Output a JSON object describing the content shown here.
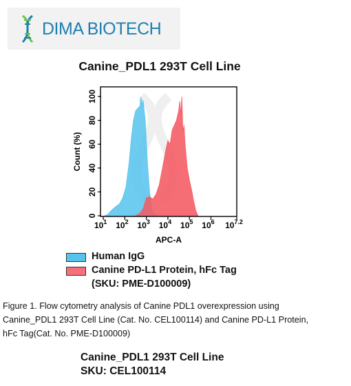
{
  "logo": {
    "text": "DIMA BIOTECH"
  },
  "chart_data": {
    "type": "area",
    "title": "Canine_PDL1 293T Cell Line",
    "xlabel": "APC-A",
    "ylabel": "Count (%)",
    "x_scale": "log10",
    "xlim": [
      0.9,
      7.2
    ],
    "ylim": [
      0,
      100
    ],
    "x_ticks": [
      {
        "pos": 1,
        "base": "10",
        "exp": "1"
      },
      {
        "pos": 2,
        "base": "10",
        "exp": "2"
      },
      {
        "pos": 3,
        "base": "10",
        "exp": "3"
      },
      {
        "pos": 4,
        "base": "10",
        "exp": "4"
      },
      {
        "pos": 5,
        "base": "10",
        "exp": "5"
      },
      {
        "pos": 6,
        "base": "10",
        "exp": "6"
      },
      {
        "pos": 7.2,
        "base": "10",
        "exp": "7.2"
      }
    ],
    "y_ticks": [
      0,
      20,
      40,
      60,
      80,
      100
    ],
    "series": [
      {
        "name": "Human IgG",
        "color": "#55c3ee",
        "x": [
          1.05,
          1.2,
          1.4,
          1.6,
          1.75,
          1.9,
          2.05,
          2.2,
          2.3,
          2.4,
          2.5,
          2.6,
          2.7,
          2.75,
          2.8,
          2.85,
          2.9,
          2.95,
          3.0,
          3.05,
          3.1,
          3.15,
          3.2,
          3.25,
          3.3,
          3.4,
          3.5
        ],
        "y": [
          0,
          1,
          5,
          8,
          10,
          15,
          24,
          45,
          65,
          80,
          88,
          90,
          92,
          100,
          93,
          97,
          88,
          80,
          62,
          45,
          32,
          20,
          12,
          7,
          3,
          1,
          0
        ]
      },
      {
        "name": "Canine PD-L1 Protein, hFc Tag (SKU: PME-D100009)",
        "color": "#f55a62",
        "x": [
          2.5,
          2.7,
          2.85,
          3.0,
          3.15,
          3.3,
          3.45,
          3.6,
          3.75,
          3.9,
          4.0,
          4.1,
          4.2,
          4.3,
          4.4,
          4.5,
          4.55,
          4.6,
          4.65,
          4.7,
          4.75,
          4.8,
          4.85,
          4.9,
          5.0,
          5.1,
          5.2,
          5.3,
          5.4
        ],
        "y": [
          0,
          2,
          6,
          15,
          16,
          14,
          18,
          26,
          40,
          55,
          63,
          60,
          72,
          76,
          80,
          88,
          96,
          85,
          100,
          70,
          76,
          60,
          50,
          40,
          30,
          22,
          12,
          4,
          0
        ]
      }
    ]
  },
  "legend": [
    {
      "label": "Human IgG",
      "color": "#55c3ee"
    },
    {
      "label": "Canine PD-L1 Protein, hFc Tag",
      "label2": "(SKU: PME-D100009)",
      "color": "#f55a62"
    }
  ],
  "caption": {
    "line1": "Figure 1. Flow cytometry analysis of Canine PDL1 overexpression using",
    "line2": "Canine_PDL1 293T Cell Line (Cat. No. CEL100114) and Canine PD-L1 Protein,",
    "line3": "hFc Tag(Cat. No. PME-D100009)"
  },
  "footer": {
    "line1": "Canine_PDL1 293T Cell Line",
    "line2": "SKU: CEL100114"
  }
}
